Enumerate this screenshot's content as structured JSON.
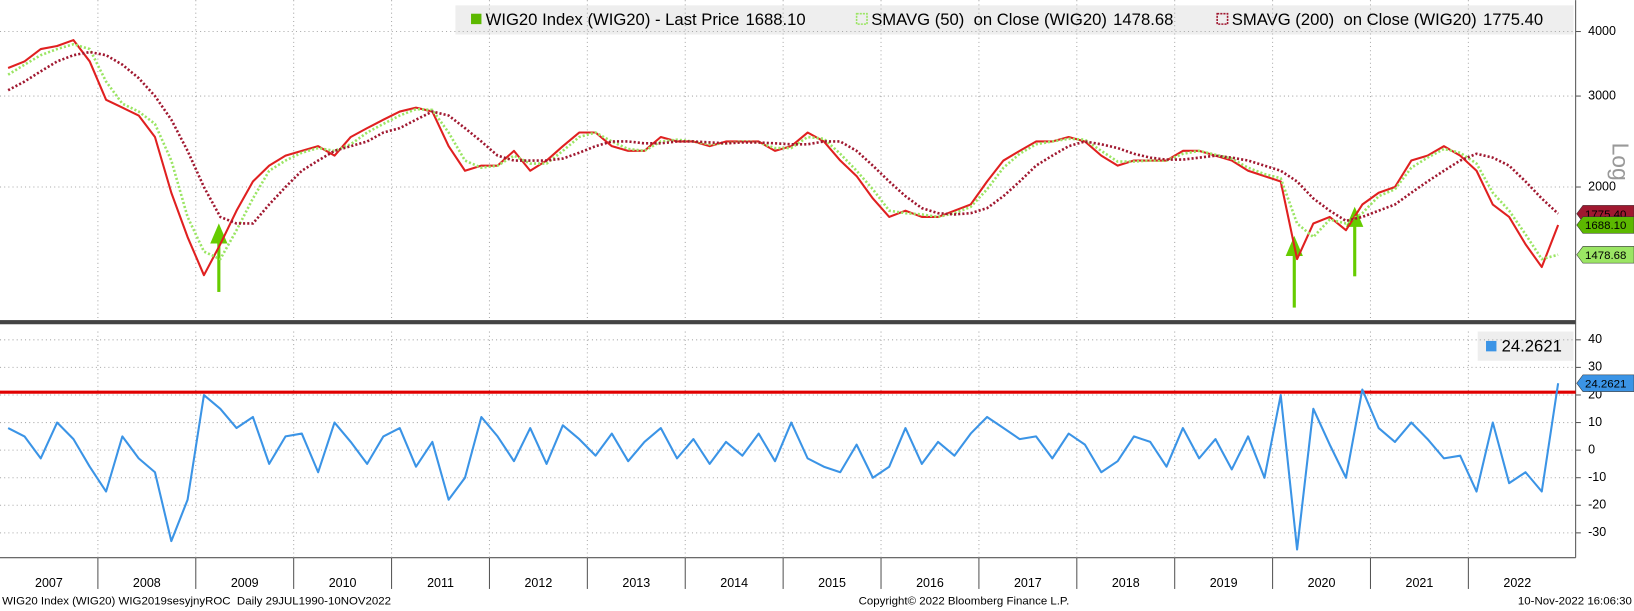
{
  "chart_data": [
    {
      "type": "line",
      "log_scale": true,
      "grid": true,
      "ylim": [
        1100,
        4600
      ],
      "yticks": [
        2000,
        3000,
        4000
      ],
      "axis_note": "Log",
      "series": [
        {
          "name": "WIG20 Index (WIG20) - Last Price",
          "color": "#5cb800",
          "line_color": "#e02020",
          "last_value": 1688.1,
          "last_label": "1688.10",
          "values": [
            3400,
            3500,
            3700,
            3750,
            3850,
            3500,
            2950,
            2850,
            2750,
            2500,
            1950,
            1600,
            1350,
            1550,
            1800,
            2050,
            2200,
            2300,
            2350,
            2400,
            2300,
            2500,
            2600,
            2700,
            2800,
            2850,
            2800,
            2400,
            2150,
            2200,
            2200,
            2350,
            2150,
            2250,
            2400,
            2550,
            2550,
            2400,
            2350,
            2350,
            2500,
            2450,
            2450,
            2400,
            2450,
            2450,
            2450,
            2350,
            2400,
            2550,
            2450,
            2250,
            2100,
            1900,
            1750,
            1800,
            1750,
            1750,
            1800,
            1850,
            2050,
            2250,
            2350,
            2450,
            2450,
            2500,
            2450,
            2300,
            2200,
            2250,
            2250,
            2250,
            2350,
            2350,
            2300,
            2250,
            2150,
            2100,
            2050,
            1450,
            1700,
            1750,
            1650,
            1850,
            1950,
            2000,
            2250,
            2300,
            2400,
            2300,
            2150,
            1850,
            1750,
            1550,
            1400,
            1688.1
          ]
        },
        {
          "name": "SMAVG (50)  on Close (WIG20)",
          "color": "#9be564",
          "dashed": true,
          "last_value": 1478.68,
          "last_label": "1478.68",
          "values": [
            3300,
            3450,
            3600,
            3700,
            3780,
            3700,
            3200,
            2900,
            2800,
            2650,
            2250,
            1750,
            1500,
            1450,
            1650,
            1900,
            2150,
            2250,
            2330,
            2380,
            2350,
            2420,
            2550,
            2650,
            2750,
            2830,
            2820,
            2550,
            2250,
            2180,
            2200,
            2300,
            2220,
            2220,
            2350,
            2500,
            2550,
            2450,
            2370,
            2350,
            2450,
            2470,
            2450,
            2420,
            2430,
            2450,
            2440,
            2380,
            2380,
            2500,
            2480,
            2320,
            2150,
            1980,
            1800,
            1780,
            1770,
            1750,
            1780,
            1830,
            1980,
            2180,
            2320,
            2420,
            2450,
            2480,
            2470,
            2350,
            2240,
            2240,
            2250,
            2250,
            2320,
            2350,
            2310,
            2270,
            2180,
            2120,
            2080,
            1700,
            1600,
            1730,
            1700,
            1780,
            1920,
            1980,
            2180,
            2280,
            2370,
            2330,
            2220,
            1950,
            1800,
            1620,
            1450,
            1478.68
          ]
        },
        {
          "name": "SMAVG (200)  on Close (WIG20)",
          "color": "#a01830",
          "dashed": true,
          "last_value": 1775.4,
          "last_label": "1775.40",
          "values": [
            3080,
            3200,
            3350,
            3500,
            3600,
            3650,
            3600,
            3450,
            3250,
            3000,
            2700,
            2350,
            2000,
            1750,
            1700,
            1700,
            1850,
            2000,
            2150,
            2250,
            2350,
            2400,
            2450,
            2550,
            2600,
            2700,
            2800,
            2750,
            2600,
            2450,
            2300,
            2250,
            2250,
            2250,
            2270,
            2330,
            2400,
            2450,
            2450,
            2430,
            2430,
            2450,
            2450,
            2440,
            2430,
            2440,
            2440,
            2430,
            2420,
            2420,
            2450,
            2450,
            2350,
            2200,
            2050,
            1920,
            1820,
            1780,
            1770,
            1780,
            1820,
            1920,
            2050,
            2200,
            2300,
            2400,
            2450,
            2420,
            2380,
            2320,
            2280,
            2260,
            2260,
            2280,
            2300,
            2280,
            2250,
            2200,
            2150,
            2050,
            1900,
            1800,
            1720,
            1750,
            1800,
            1850,
            1950,
            2050,
            2150,
            2250,
            2320,
            2280,
            2200,
            2050,
            1900,
            1775.4
          ]
        }
      ]
    },
    {
      "type": "line",
      "grid": true,
      "ylim": [
        -39,
        43
      ],
      "yticks": [
        -30,
        -20,
        -10,
        0,
        10,
        20,
        30,
        40
      ],
      "hline": {
        "value": 21,
        "color": "#e00000"
      },
      "categories": [
        "2007",
        null,
        null,
        null,
        null,
        null,
        "2008",
        null,
        null,
        null,
        null,
        null,
        "2009",
        null,
        null,
        null,
        null,
        null,
        "2010",
        null,
        null,
        null,
        null,
        null,
        "2011",
        null,
        null,
        null,
        null,
        null,
        "2012",
        null,
        null,
        null,
        null,
        null,
        "2013",
        null,
        null,
        null,
        null,
        null,
        "2014",
        null,
        null,
        null,
        null,
        null,
        "2015",
        null,
        null,
        null,
        null,
        null,
        "2016",
        null,
        null,
        null,
        null,
        null,
        "2017",
        null,
        null,
        null,
        null,
        null,
        "2018",
        null,
        null,
        null,
        null,
        null,
        "2019",
        null,
        null,
        null,
        null,
        null,
        "2020",
        null,
        null,
        null,
        null,
        null,
        "2021",
        null,
        null,
        null,
        null,
        null,
        "2022",
        null,
        null,
        null,
        null,
        null
      ],
      "series": [
        {
          "color": "#3b94e6",
          "last_value": 24.2621,
          "last_label": "24.2621",
          "values": [
            8,
            5,
            -3,
            10,
            4,
            -6,
            -15,
            5,
            -3,
            -8,
            -33,
            -18,
            20,
            15,
            8,
            12,
            -5,
            5,
            6,
            -8,
            10,
            3,
            -5,
            5,
            8,
            -6,
            3,
            -18,
            -10,
            12,
            5,
            -4,
            8,
            -5,
            9,
            4,
            -2,
            6,
            -4,
            3,
            8,
            -3,
            4,
            -5,
            3,
            -2,
            6,
            -4,
            10,
            -3,
            -6,
            -8,
            2,
            -10,
            -6,
            8,
            -5,
            3,
            -2,
            6,
            12,
            8,
            4,
            5,
            -3,
            6,
            2,
            -8,
            -4,
            5,
            3,
            -6,
            8,
            -3,
            4,
            -7,
            5,
            -10,
            20,
            -36,
            15,
            2,
            -10,
            22,
            8,
            3,
            10,
            4,
            -3,
            -2,
            -15,
            10,
            -12,
            -8,
            -15,
            24.2621
          ]
        }
      ]
    }
  ],
  "footer": {
    "left": "WIG20 Index (WIG20) WIG2019sesyjnyROC  Daily 29JUL1990-10NOV2022",
    "center": "Copyright© 2022 Bloomberg Finance L.P.",
    "right": "10-Nov-2022 16:06:30"
  }
}
